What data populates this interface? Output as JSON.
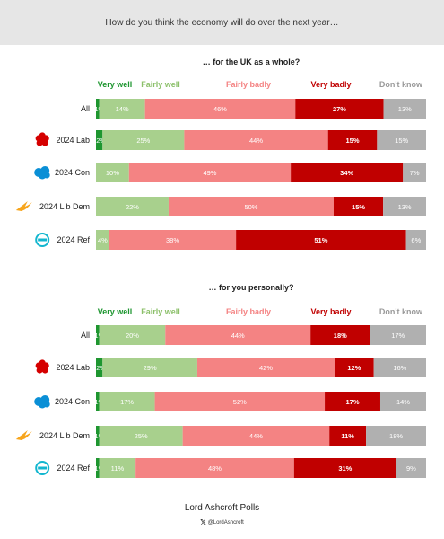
{
  "header": {
    "question": "How do you think the economy will do over the next year…"
  },
  "legend_colors": {
    "Very well": "#1e9630",
    "Fairly well": "#a8d08d",
    "Fairly badly": "#f48383",
    "Very badly": "#c00000",
    "Don't know": "#b0b0b0"
  },
  "legend_text_colors": {
    "Very well": "#1e9630",
    "Fairly well": "#8cc06a",
    "Fairly badly": "#f48383",
    "Very badly": "#c00000",
    "Don't know": "#999999"
  },
  "row_icons": {
    "2024 Lab": "labour-rose-icon",
    "2024 Con": "conservative-tree-icon",
    "2024 Lib Dem": "libdem-bird-icon",
    "2024 Ref": "reform-logo-icon"
  },
  "chart_data": [
    {
      "type": "bar",
      "orientation": "horizontal",
      "stacked": true,
      "title": "… for the UK as a whole?",
      "categories": [
        "All",
        "2024 Lab",
        "2024 Con",
        "2024 Lib Dem",
        "2024 Ref"
      ],
      "series": [
        {
          "name": "Very well",
          "values": [
            1,
            2,
            0,
            0,
            0
          ]
        },
        {
          "name": "Fairly well",
          "values": [
            14,
            25,
            10,
            22,
            4
          ]
        },
        {
          "name": "Fairly badly",
          "values": [
            46,
            44,
            49,
            50,
            38
          ]
        },
        {
          "name": "Very badly",
          "values": [
            27,
            15,
            34,
            15,
            51
          ]
        },
        {
          "name": "Don't know",
          "values": [
            13,
            15,
            7,
            13,
            6
          ]
        }
      ]
    },
    {
      "type": "bar",
      "orientation": "horizontal",
      "stacked": true,
      "title": "… for you personally?",
      "categories": [
        "All",
        "2024 Lab",
        "2024 Con",
        "2024 Lib Dem",
        "2024 Ref"
      ],
      "series": [
        {
          "name": "Very well",
          "values": [
            1,
            2,
            1,
            1,
            1
          ]
        },
        {
          "name": "Fairly well",
          "values": [
            20,
            29,
            17,
            25,
            11
          ]
        },
        {
          "name": "Fairly badly",
          "values": [
            44,
            42,
            52,
            44,
            48
          ]
        },
        {
          "name": "Very badly",
          "values": [
            18,
            12,
            17,
            11,
            31
          ]
        },
        {
          "name": "Don't know",
          "values": [
            17,
            16,
            14,
            18,
            9
          ]
        }
      ]
    }
  ],
  "footer": {
    "brand": "Lord Ashcroft Polls",
    "handle": "@LordAshcroft",
    "x_icon": "x-logo-icon"
  }
}
